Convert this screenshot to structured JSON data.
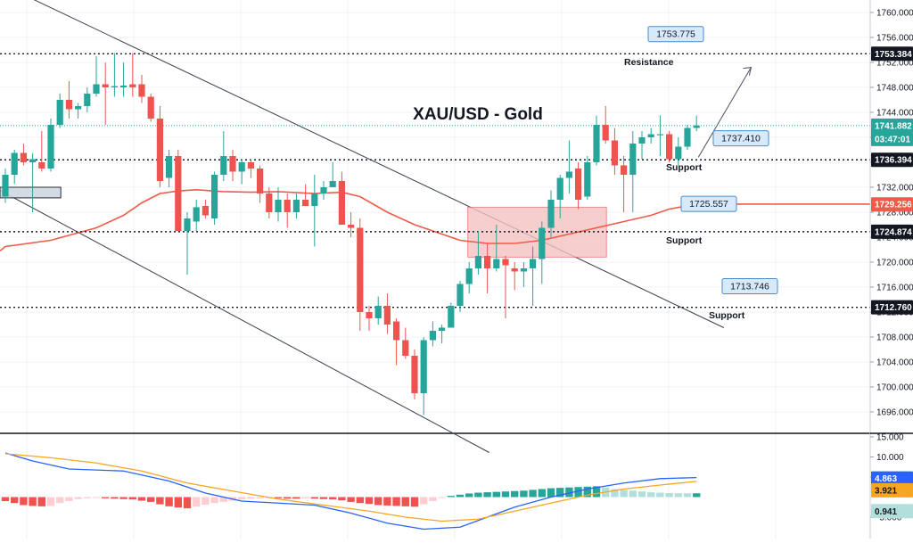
{
  "chart_data": {
    "type": "candlestick",
    "title": "XAU/USD - Gold",
    "price_axis": {
      "range": [
        1693.0,
        1763.0
      ],
      "ticks": [
        "1760.000",
        "1756.000",
        "1752.000",
        "1748.000",
        "1744.000",
        "1740.000",
        "1736.000",
        "1732.000",
        "1728.000",
        "1724.000",
        "1720.000",
        "1716.000",
        "1712.000",
        "1708.000",
        "1704.000",
        "1700.000",
        "1696.000"
      ]
    },
    "price_labels": [
      {
        "name": "resistance-level",
        "value": 1753.384,
        "text": "1753.384",
        "bg": "#131722",
        "fg": "#ffffff"
      },
      {
        "name": "current-price",
        "value": 1741.882,
        "text": "1741.882",
        "bg": "#26a69a",
        "fg": "#ffffff"
      },
      {
        "name": "countdown",
        "value": 1740.0,
        "text": "03:47:01",
        "bg": "#26a69a",
        "fg": "#ffffff"
      },
      {
        "name": "support-level-1",
        "value": 1736.394,
        "text": "1736.394",
        "bg": "#131722",
        "fg": "#ffffff"
      },
      {
        "name": "moving-average",
        "value": 1729.256,
        "text": "1729.256",
        "bg": "#f05a4a",
        "fg": "#ffffff"
      },
      {
        "name": "support-level-2",
        "value": 1724.874,
        "text": "1724.874",
        "bg": "#131722",
        "fg": "#ffffff"
      },
      {
        "name": "support-level-3",
        "value": 1712.76,
        "text": "1712.760",
        "bg": "#131722",
        "fg": "#ffffff"
      }
    ],
    "levels": [
      {
        "name": "resistance",
        "value": 1753.384
      },
      {
        "name": "support",
        "value": 1736.394
      },
      {
        "name": "support",
        "value": 1724.874
      },
      {
        "name": "support",
        "value": 1712.76
      }
    ],
    "annotations": [
      {
        "name": "resistance-label",
        "text": "Resistance",
        "price": 1751.6,
        "xpx": 700
      },
      {
        "name": "support-label-1",
        "text": "Support",
        "price": 1734.7,
        "xpx": 747
      },
      {
        "name": "support-label-2",
        "text": "Support",
        "price": 1723.0,
        "xpx": 747
      },
      {
        "name": "support-label-3",
        "text": "Support",
        "price": 1711.0,
        "xpx": 795
      }
    ],
    "callouts": [
      {
        "name": "callout-1753",
        "text": "1753.775",
        "price": 1755.9,
        "xpx": 727
      },
      {
        "name": "callout-1737",
        "text": "1737.410",
        "price": 1739.2,
        "xpx": 800
      },
      {
        "name": "callout-1725",
        "text": "1725.557",
        "price": 1728.7,
        "xpx": 764
      },
      {
        "name": "callout-1713",
        "text": "1713.746",
        "price": 1715.5,
        "xpx": 810
      }
    ],
    "candles": [
      [
        1730.5,
        1735.0,
        1729.5,
        1734.0
      ],
      [
        1734.0,
        1738.0,
        1732.5,
        1737.5
      ],
      [
        1737.5,
        1739.0,
        1735.5,
        1736.0
      ],
      [
        1736.0,
        1737.5,
        1728.0,
        1736.5
      ],
      [
        1736.0,
        1741.0,
        1734.5,
        1735.0
      ],
      [
        1735.0,
        1743.0,
        1734.5,
        1742.0
      ],
      [
        1742.0,
        1747.0,
        1741.5,
        1746.0
      ],
      [
        1746.0,
        1749.0,
        1743.0,
        1744.5
      ],
      [
        1744.5,
        1745.5,
        1743.0,
        1745.0
      ],
      [
        1745.0,
        1748.0,
        1744.0,
        1747.0
      ],
      [
        1747.0,
        1753.0,
        1746.5,
        1748.5
      ],
      [
        1748.5,
        1752.0,
        1742.0,
        1748.0
      ],
      [
        1748.0,
        1753.5,
        1746.5,
        1748.2
      ],
      [
        1748.0,
        1752.0,
        1746.5,
        1748.3
      ],
      [
        1748.5,
        1753.5,
        1746.5,
        1748.0
      ],
      [
        1748.5,
        1750.0,
        1745.5,
        1746.5
      ],
      [
        1746.5,
        1747.0,
        1742.5,
        1743.0
      ],
      [
        1743.0,
        1745.0,
        1732.0,
        1733.0
      ],
      [
        1733.5,
        1738.0,
        1732.0,
        1737.0
      ],
      [
        1737.0,
        1738.0,
        1725.0,
        1725.0
      ],
      [
        1725.0,
        1728.0,
        1718.0,
        1727.0
      ],
      [
        1726.5,
        1730.0,
        1725.0,
        1728.8
      ],
      [
        1729.0,
        1730.0,
        1727.0,
        1727.5
      ],
      [
        1727.0,
        1734.5,
        1726.0,
        1734.0
      ],
      [
        1734.0,
        1741.0,
        1733.0,
        1737.0
      ],
      [
        1737.0,
        1738.0,
        1733.0,
        1734.5
      ],
      [
        1734.5,
        1736.5,
        1732.5,
        1736.0
      ],
      [
        1736.0,
        1736.5,
        1733.5,
        1735.0
      ],
      [
        1735.0,
        1735.5,
        1729.5,
        1731.0
      ],
      [
        1731.0,
        1732.0,
        1727.0,
        1728.0
      ],
      [
        1728.0,
        1732.0,
        1726.5,
        1730.0
      ],
      [
        1730.0,
        1731.0,
        1725.5,
        1728.0
      ],
      [
        1728.0,
        1731.0,
        1727.0,
        1730.0
      ],
      [
        1730.0,
        1732.5,
        1729.0,
        1729.0
      ],
      [
        1729.0,
        1734.0,
        1722.5,
        1731.0
      ],
      [
        1731.0,
        1733.0,
        1730.0,
        1732.0
      ],
      [
        1732.0,
        1736.0,
        1732.0,
        1733.0
      ],
      [
        1733.0,
        1734.5,
        1726.0,
        1726.0
      ],
      [
        1726.0,
        1728.0,
        1724.0,
        1725.5
      ],
      [
        1725.5,
        1727.0,
        1709.0,
        1712.0
      ],
      [
        1712.0,
        1713.0,
        1709.0,
        1711.0
      ],
      [
        1711.0,
        1714.5,
        1710.0,
        1713.0
      ],
      [
        1713.0,
        1715.0,
        1708.5,
        1710.0
      ],
      [
        1710.5,
        1711.0,
        1703.5,
        1707.5
      ],
      [
        1707.5,
        1709.5,
        1704.5,
        1705.0
      ],
      [
        1705.0,
        1706.0,
        1698.0,
        1699.0
      ],
      [
        1699.0,
        1708.0,
        1695.5,
        1707.5
      ],
      [
        1707.5,
        1710.5,
        1706.5,
        1709.0
      ],
      [
        1709.0,
        1710.0,
        1707.0,
        1709.5
      ],
      [
        1709.5,
        1713.5,
        1709.5,
        1713.0
      ],
      [
        1713.0,
        1717.0,
        1712.0,
        1716.5
      ],
      [
        1716.5,
        1720.0,
        1715.0,
        1719.0
      ],
      [
        1719.0,
        1725.0,
        1718.0,
        1721.0
      ],
      [
        1721.0,
        1723.0,
        1715.0,
        1719.0
      ],
      [
        1719.0,
        1726.0,
        1718.5,
        1720.5
      ],
      [
        1720.5,
        1721.0,
        1711.0,
        1719.5
      ],
      [
        1719.0,
        1720.0,
        1715.5,
        1718.5
      ],
      [
        1718.5,
        1720.0,
        1716.0,
        1719.0
      ],
      [
        1719.0,
        1722.5,
        1713.0,
        1720.5
      ],
      [
        1720.5,
        1726.5,
        1716.5,
        1725.5
      ],
      [
        1725.5,
        1731.5,
        1724.0,
        1730.0
      ],
      [
        1730.0,
        1734.0,
        1727.0,
        1733.5
      ],
      [
        1733.5,
        1739.5,
        1731.0,
        1734.5
      ],
      [
        1735.0,
        1736.0,
        1728.5,
        1730.0
      ],
      [
        1730.5,
        1737.0,
        1730.0,
        1736.0
      ],
      [
        1736.0,
        1743.5,
        1735.5,
        1742.0
      ],
      [
        1742.0,
        1745.0,
        1739.0,
        1739.5
      ],
      [
        1739.5,
        1741.5,
        1734.0,
        1735.5
      ],
      [
        1735.5,
        1737.0,
        1728.0,
        1734.0
      ],
      [
        1734.0,
        1741.0,
        1728.0,
        1739.0
      ],
      [
        1739.0,
        1741.0,
        1736.5,
        1740.0
      ],
      [
        1740.0,
        1741.5,
        1739.0,
        1740.5
      ],
      [
        1740.5,
        1743.5,
        1737.0,
        1740.5
      ],
      [
        1740.5,
        1741.0,
        1736.0,
        1736.5
      ],
      [
        1736.5,
        1740.0,
        1735.5,
        1738.5
      ],
      [
        1738.5,
        1742.0,
        1738.0,
        1741.5
      ],
      [
        1741.5,
        1743.5,
        1741.0,
        1741.9
      ]
    ],
    "moving_average": [
      [
        0,
        1722.5
      ],
      [
        5,
        1723.5
      ],
      [
        10,
        1725.5
      ],
      [
        13,
        1727.5
      ],
      [
        15,
        1729.5
      ],
      [
        17,
        1731.0
      ],
      [
        19,
        1731.4
      ],
      [
        21,
        1731.6
      ],
      [
        24,
        1731.3
      ],
      [
        27,
        1731.2
      ],
      [
        30,
        1731.3
      ],
      [
        34,
        1731.0
      ],
      [
        37,
        1731.2
      ],
      [
        39,
        1730.5
      ],
      [
        42,
        1728.0
      ],
      [
        45,
        1726.0
      ],
      [
        48,
        1724.5
      ],
      [
        50,
        1723.5
      ],
      [
        53,
        1723.0
      ],
      [
        56,
        1723.0
      ],
      [
        59,
        1723.5
      ],
      [
        62,
        1724.5
      ],
      [
        65,
        1725.5
      ],
      [
        68,
        1726.5
      ],
      [
        71,
        1727.5
      ],
      [
        73,
        1728.5
      ],
      [
        76,
        1729.3
      ]
    ],
    "macd": {
      "axis_ticks": [
        "15.000",
        "10.000",
        "5.000",
        "-5.000"
      ],
      "range": [
        -8.5,
        15.0
      ],
      "macd_label": {
        "text": "4.863",
        "value": 4.863,
        "bg": "#2962ff",
        "fg": "#ffffff"
      },
      "signal_label": {
        "text": "3.921",
        "value": 3.921,
        "bg": "#f5a623",
        "fg": "#131722"
      },
      "hist_label": {
        "text": "0.941",
        "value": 0.941,
        "bg": "#b2dfdb",
        "fg": "#131722"
      },
      "macd_line": [
        [
          0,
          11.0
        ],
        [
          3,
          9.0
        ],
        [
          7,
          7.0
        ],
        [
          13,
          6.5
        ],
        [
          18,
          4.0
        ],
        [
          22,
          1.0
        ],
        [
          26,
          -1.0
        ],
        [
          30,
          -1.5
        ],
        [
          34,
          -2.0
        ],
        [
          38,
          -4.0
        ],
        [
          42,
          -6.5
        ],
        [
          46,
          -8.0
        ],
        [
          50,
          -7.5
        ],
        [
          53,
          -5.0
        ],
        [
          56,
          -2.5
        ],
        [
          60,
          0.0
        ],
        [
          64,
          2.0
        ],
        [
          68,
          3.5
        ],
        [
          72,
          4.6
        ],
        [
          76,
          4.86
        ]
      ],
      "signal_line": [
        [
          0,
          10.8
        ],
        [
          5,
          9.8
        ],
        [
          10,
          8.5
        ],
        [
          15,
          6.5
        ],
        [
          20,
          3.5
        ],
        [
          25,
          1.5
        ],
        [
          30,
          -0.5
        ],
        [
          35,
          -2.0
        ],
        [
          40,
          -3.5
        ],
        [
          44,
          -5.0
        ],
        [
          48,
          -6.0
        ],
        [
          52,
          -5.5
        ],
        [
          56,
          -3.5
        ],
        [
          60,
          -1.5
        ],
        [
          64,
          0.5
        ],
        [
          68,
          2.0
        ],
        [
          72,
          3.0
        ],
        [
          76,
          3.92
        ]
      ],
      "histogram": [
        -1.0,
        -1.5,
        -2.0,
        -2.2,
        -2.3,
        -2.2,
        -1.5,
        -1.0,
        -0.5,
        -0.3,
        -0.2,
        -0.3,
        -0.4,
        -0.5,
        -0.6,
        -0.9,
        -1.2,
        -1.8,
        -2.3,
        -2.6,
        -2.8,
        -2.4,
        -1.9,
        -1.5,
        -1.2,
        -0.9,
        -0.6,
        -0.4,
        -0.3,
        -0.2,
        -0.3,
        -0.4,
        -0.4,
        -0.3,
        -0.4,
        -0.5,
        -0.6,
        -0.8,
        -1.2,
        -1.5,
        -1.7,
        -2.0,
        -2.1,
        -2.2,
        -2.3,
        -2.4,
        -1.8,
        -1.0,
        -0.2,
        0.3,
        0.6,
        0.9,
        1.1,
        1.2,
        1.3,
        1.4,
        1.5,
        1.6,
        1.8,
        2.0,
        2.2,
        2.3,
        2.4,
        2.5,
        2.6,
        2.7,
        2.4,
        2.0,
        1.8,
        1.6,
        1.4,
        1.2,
        1.1,
        1.0,
        0.95,
        0.94,
        0.941
      ]
    },
    "colors": {
      "up": "#26a69a",
      "down": "#ef5350",
      "ma": "#f05a4a",
      "macd": "#2962ff",
      "signal": "#f5a623",
      "hist_up_strong": "#26a69a",
      "hist_up_weak": "#b2dfdb",
      "hist_down_strong": "#ef5350",
      "hist_down_weak": "#ffcdd2",
      "zone_fill": "#f4c2c2",
      "zone_border": "#e57373",
      "callout_fill": "#d7eafc",
      "callout_border": "#4a8ccc",
      "grid": "#eef0f3",
      "axis_text": "#131722"
    },
    "zones": [
      {
        "name": "demand-zone",
        "from": 51,
        "to": 66,
        "high": 1728.8,
        "low": 1720.8
      },
      {
        "name": "left-zone",
        "from": -1,
        "to": 6,
        "high": 1732.0,
        "low": 1730.3
      }
    ]
  }
}
